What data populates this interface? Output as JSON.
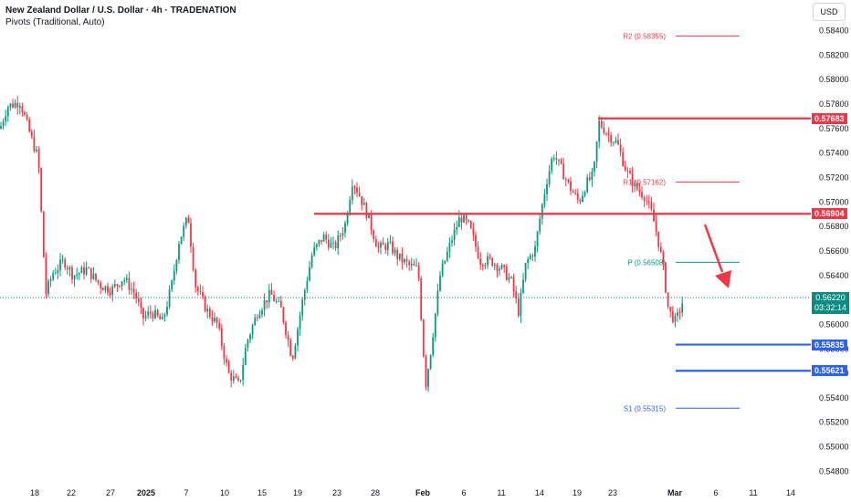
{
  "header": {
    "title": "New Zealand Dollar / U.S. Dollar · 4h · TRADENATION",
    "indicator": "Pivots (Traditional, Auto)"
  },
  "currency_button": "USD",
  "current_price": {
    "value": "0.56220",
    "countdown": "03:32:14",
    "color": "#0b8b82"
  },
  "colors": {
    "up": "#089981",
    "down": "#f23645",
    "resistance": "#f23645",
    "support": "#2962ff",
    "pivot_p": "#089981",
    "pivot_r": "#f23645",
    "pivot_s": "#2962ff",
    "arrow": "#f23645"
  },
  "level_tags": [
    {
      "label": "0.57683",
      "color": "#f23645"
    },
    {
      "label": "0.56904",
      "color": "#f23645"
    },
    {
      "label": "0.55835",
      "color": "#2962ff"
    },
    {
      "label": "0.55621",
      "color": "#2962ff"
    }
  ],
  "chart_data": {
    "type": "candlestick",
    "y_axis": {
      "range": [
        0.5475,
        0.5857
      ],
      "ticks": [
        "0.58400",
        "0.58200",
        "0.58000",
        "0.57800",
        "0.57600",
        "0.57400",
        "0.57200",
        "0.57000",
        "0.56800",
        "0.56600",
        "0.56400",
        "0.56200",
        "0.56000",
        "0.55800",
        "0.55600",
        "0.55400",
        "0.55200",
        "0.55000",
        "0.54800"
      ]
    },
    "x_axis": {
      "ticks": [
        "18",
        "22",
        "27",
        "2025",
        "7",
        "10",
        "15",
        "19",
        "23",
        "28",
        "Feb",
        "6",
        "11",
        "14",
        "19",
        "23",
        "Mar",
        "6",
        "11",
        "14"
      ]
    },
    "grid": false,
    "close_path": [
      [
        0,
        0.576
      ],
      [
        8,
        0.5778
      ],
      [
        22,
        0.5782
      ],
      [
        30,
        0.5762
      ],
      [
        42,
        0.5735
      ],
      [
        50,
        0.5625
      ],
      [
        58,
        0.5642
      ],
      [
        70,
        0.5652
      ],
      [
        80,
        0.564
      ],
      [
        95,
        0.5645
      ],
      [
        110,
        0.5632
      ],
      [
        122,
        0.5628
      ],
      [
        135,
        0.5638
      ],
      [
        148,
        0.5625
      ],
      [
        156,
        0.5605
      ],
      [
        166,
        0.561
      ],
      [
        178,
        0.5602
      ],
      [
        188,
        0.5632
      ],
      [
        196,
        0.5668
      ],
      [
        206,
        0.5688
      ],
      [
        214,
        0.5632
      ],
      [
        226,
        0.5612
      ],
      [
        238,
        0.56
      ],
      [
        250,
        0.556
      ],
      [
        262,
        0.555
      ],
      [
        270,
        0.5585
      ],
      [
        282,
        0.561
      ],
      [
        296,
        0.5625
      ],
      [
        308,
        0.5612
      ],
      [
        320,
        0.5572
      ],
      [
        332,
        0.5622
      ],
      [
        342,
        0.5658
      ],
      [
        354,
        0.5672
      ],
      [
        366,
        0.5662
      ],
      [
        378,
        0.5682
      ],
      [
        386,
        0.5718
      ],
      [
        394,
        0.5705
      ],
      [
        402,
        0.569
      ],
      [
        414,
        0.5662
      ],
      [
        426,
        0.5665
      ],
      [
        436,
        0.5655
      ],
      [
        448,
        0.5648
      ],
      [
        458,
        0.5645
      ],
      [
        466,
        0.555
      ],
      [
        472,
        0.558
      ],
      [
        482,
        0.564
      ],
      [
        494,
        0.5668
      ],
      [
        504,
        0.5688
      ],
      [
        514,
        0.568
      ],
      [
        526,
        0.5652
      ],
      [
        538,
        0.5652
      ],
      [
        550,
        0.5645
      ],
      [
        560,
        0.5635
      ],
      [
        568,
        0.561
      ],
      [
        576,
        0.565
      ],
      [
        586,
        0.5662
      ],
      [
        592,
        0.569
      ],
      [
        598,
        0.5715
      ],
      [
        606,
        0.574
      ],
      [
        614,
        0.5728
      ],
      [
        624,
        0.5712
      ],
      [
        634,
        0.57
      ],
      [
        642,
        0.5715
      ],
      [
        650,
        0.5722
      ],
      [
        656,
        0.5765
      ],
      [
        666,
        0.5755
      ],
      [
        676,
        0.5748
      ],
      [
        686,
        0.5725
      ],
      [
        696,
        0.5712
      ],
      [
        706,
        0.5705
      ],
      [
        714,
        0.569
      ],
      [
        720,
        0.5672
      ],
      [
        726,
        0.5648
      ],
      [
        732,
        0.5612
      ],
      [
        740,
        0.5602
      ],
      [
        746,
        0.5615
      ],
      [
        749,
        0.5622
      ]
    ],
    "pivot_lines": [
      {
        "name": "R2",
        "label": "R2 (0.58355)",
        "value": 0.58355,
        "kind": "r"
      },
      {
        "name": "R1",
        "label": "R1 (0.57162)",
        "value": 0.57162,
        "kind": "r"
      },
      {
        "name": "P",
        "label": "P (0.56508)",
        "value": 0.56508,
        "kind": "p"
      },
      {
        "name": "S1",
        "label": "S1 (0.55315)",
        "value": 0.55315,
        "kind": "s"
      }
    ],
    "horizontal_levels": [
      {
        "value": 0.57683,
        "color": "#f23645",
        "start": "Feb 23"
      },
      {
        "value": 0.56904,
        "color": "#f23645",
        "start": "Jan 20"
      },
      {
        "value": 0.55835,
        "color": "#2962ff",
        "start": "Feb 28"
      },
      {
        "value": 0.55621,
        "color": "#2962ff",
        "start": "Feb 28"
      }
    ],
    "annotation": "down arrow"
  }
}
